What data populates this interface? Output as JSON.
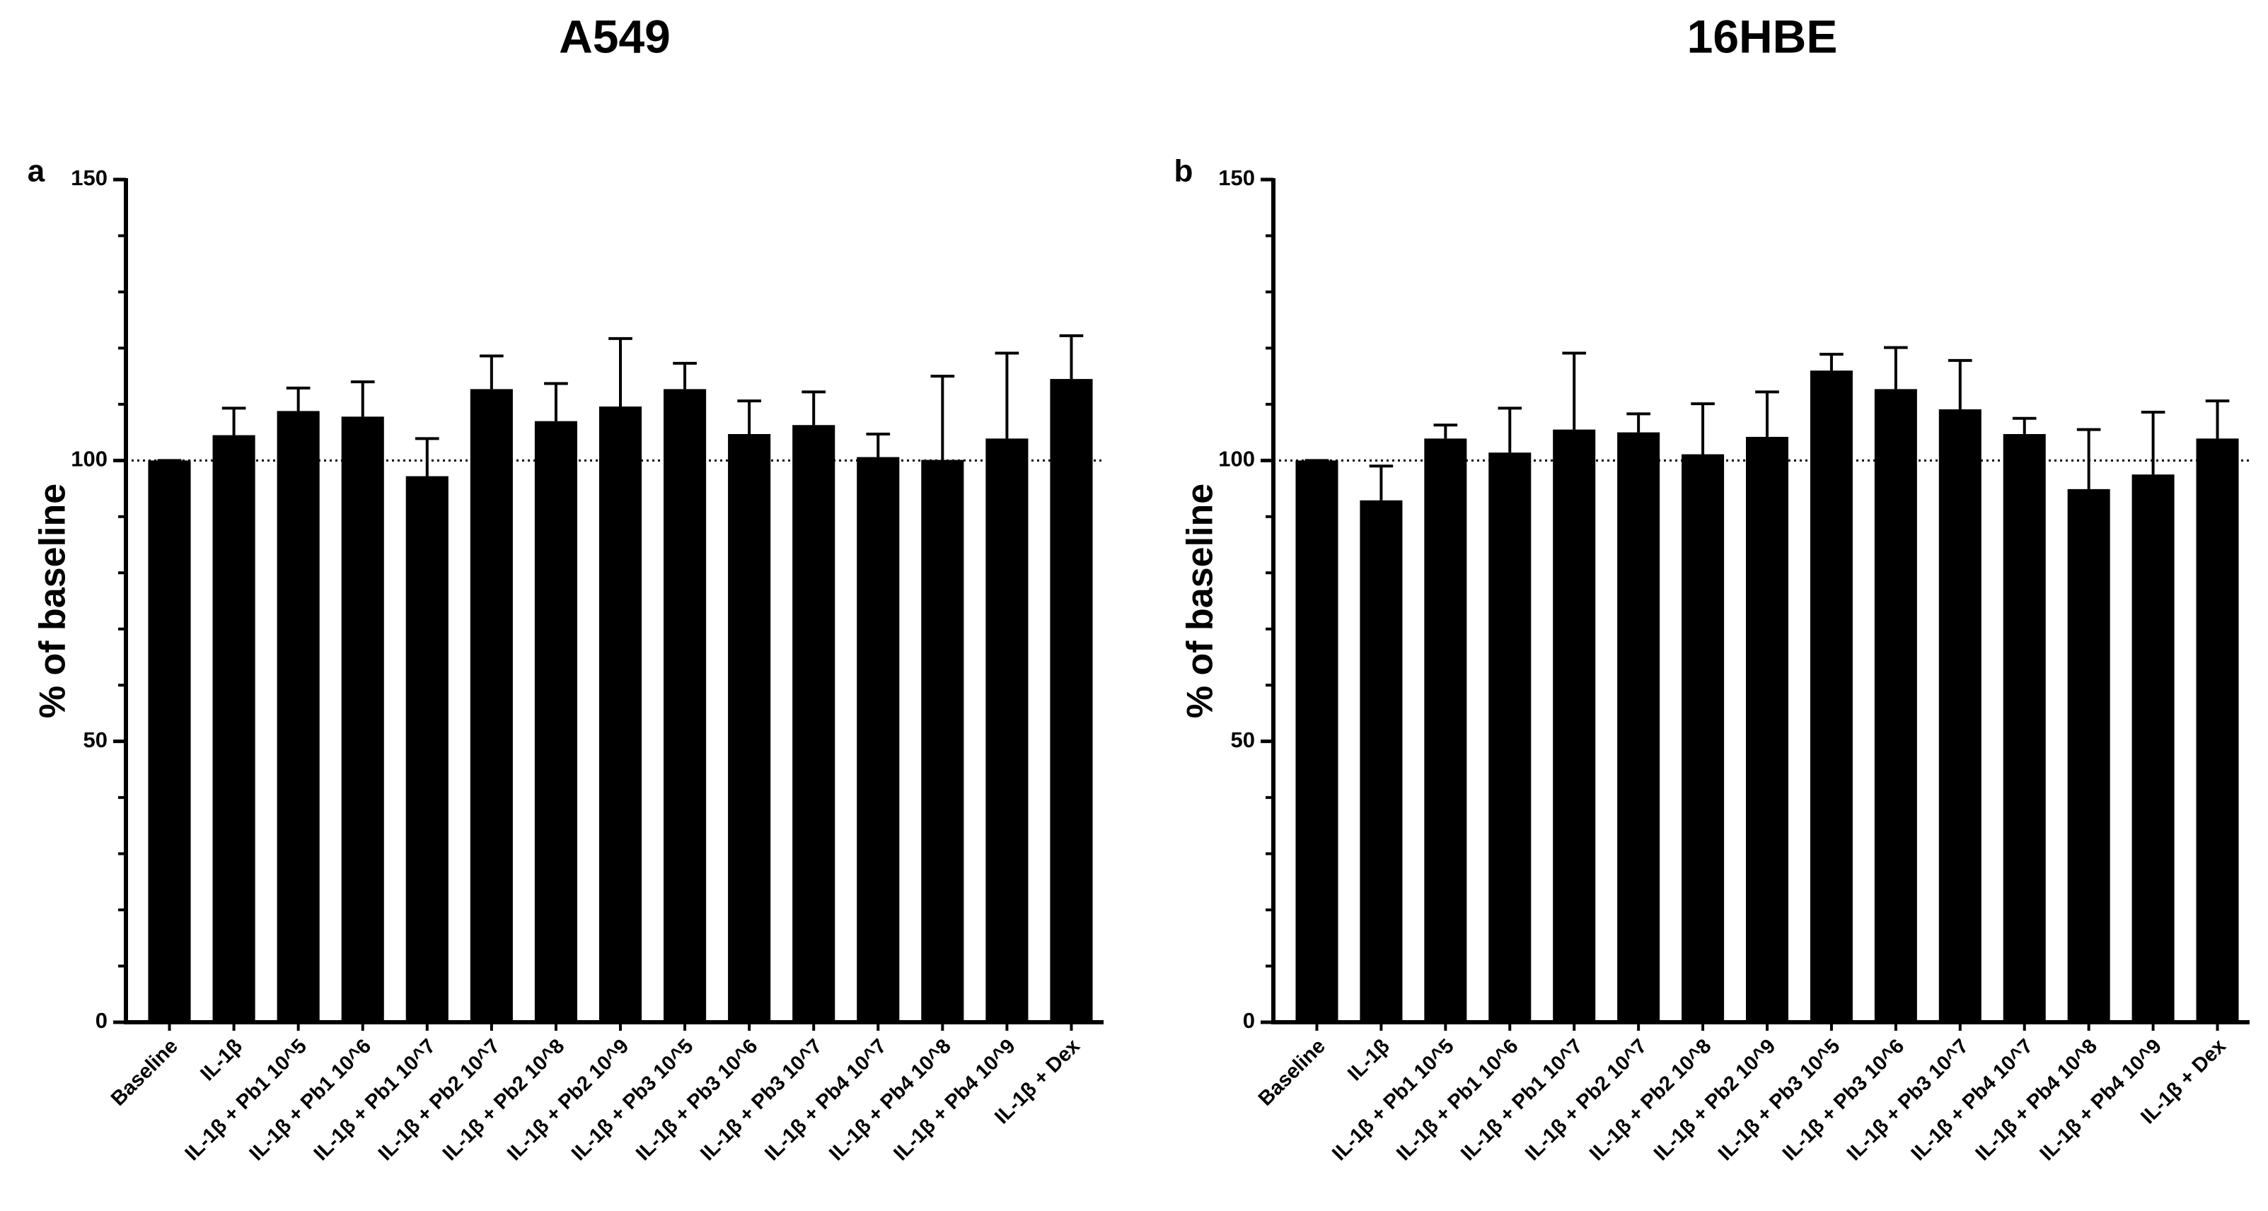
{
  "chart_data": [
    {
      "type": "bar",
      "title": "A549",
      "panel_label": "a",
      "y_label": "% of baseline",
      "categories": [
        "Baseline",
        "IL-1β",
        "IL-1β + Pb1 10^5",
        "IL-1β + Pb1 10^6",
        "IL-1β + Pb1 10^7",
        "IL-1β + Pb2 10^7",
        "IL-1β + Pb2 10^8",
        "IL-1β + Pb2 10^9",
        "IL-1β + Pb3 10^5",
        "IL-1β + Pb3 10^6",
        "IL-1β + Pb3 10^7",
        "IL-1β + Pb4 10^7",
        "IL-1β + Pb4 10^8",
        "IL-1β + Pb4 10^9",
        "IL-1β + Dex"
      ],
      "values": [
        100,
        104.5,
        108.8,
        107.8,
        97.2,
        112.7,
        107.0,
        109.6,
        112.7,
        104.7,
        106.3,
        100.6,
        100.1,
        103.9,
        114.5
      ],
      "errors": [
        0,
        4.8,
        4.1,
        6.2,
        6.7,
        5.9,
        6.7,
        12.1,
        4.6,
        5.9,
        5.9,
        4.1,
        14.9,
        15.2,
        7.7
      ],
      "color": "#000000",
      "ylim": [
        0,
        150
      ],
      "yticks": [
        0,
        50,
        100,
        150
      ],
      "yminorticks": [
        10,
        20,
        30,
        40,
        60,
        70,
        80,
        90,
        110,
        120,
        130,
        140
      ],
      "reference_line": 100
    },
    {
      "type": "bar",
      "title": "16HBE",
      "panel_label": "b",
      "y_label": "% of baseline",
      "categories": [
        "Baseline",
        "IL-1β",
        "IL-1β + Pb1 10^5",
        "IL-1β + Pb1 10^6",
        "IL-1β + Pb1 10^7",
        "IL-1β + Pb2 10^7",
        "IL-1β + Pb2 10^8",
        "IL-1β + Pb2 10^9",
        "IL-1β + Pb3 10^5",
        "IL-1β + Pb3 10^6",
        "IL-1β + Pb3 10^7",
        "IL-1β + Pb4 10^7",
        "IL-1β + Pb4 10^8",
        "IL-1β + Pb4 10^9",
        "IL-1β + Dex"
      ],
      "values": [
        100,
        92.9,
        103.9,
        101.4,
        105.5,
        105.0,
        101.1,
        104.2,
        116.0,
        112.7,
        109.1,
        104.7,
        94.9,
        97.5,
        103.9
      ],
      "errors": [
        0,
        6.1,
        2.4,
        7.9,
        13.6,
        3.3,
        9.0,
        8.0,
        2.9,
        7.4,
        8.7,
        2.8,
        10.6,
        11.1,
        6.7
      ],
      "color": "#000000",
      "ylim": [
        0,
        150
      ],
      "yticks": [
        0,
        50,
        100,
        150
      ],
      "yminorticks": [
        10,
        20,
        30,
        40,
        60,
        70,
        80,
        90,
        110,
        120,
        130,
        140
      ],
      "reference_line": 100
    }
  ]
}
